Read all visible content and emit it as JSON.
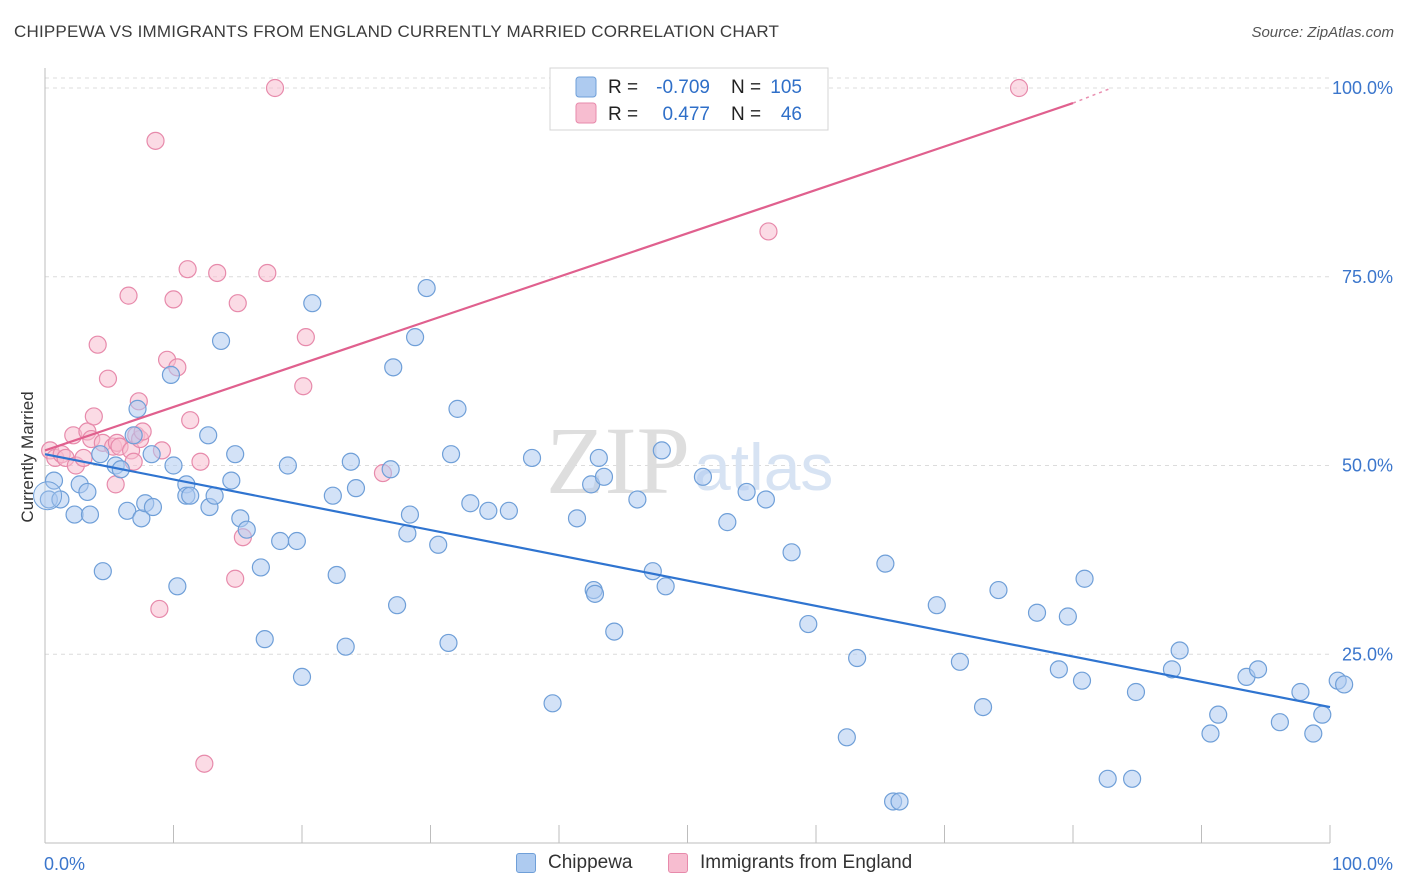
{
  "title": "CHIPPEWA VS IMMIGRANTS FROM ENGLAND CURRENTLY MARRIED CORRELATION CHART",
  "source": "Source: ZipAtlas.com",
  "watermark": {
    "zip": "ZIP",
    "atlas": "atlas"
  },
  "legend_top": [
    {
      "r_label": "R =",
      "r_value": "-0.709",
      "n_label": "N =",
      "n_value": "105"
    },
    {
      "r_label": "R =",
      "r_value": "0.477",
      "n_label": "N =",
      "n_value": "46"
    }
  ],
  "legend_bottom": [
    "Chippewa",
    "Immigrants from England"
  ],
  "chart_data": {
    "type": "scatter",
    "title": "CHIPPEWA VS IMMIGRANTS FROM ENGLAND CURRENTLY MARRIED CORRELATION CHART",
    "xlabel": "",
    "ylabel": "Currently Married",
    "xlim": [
      0,
      100
    ],
    "ylim": [
      0,
      100
    ],
    "x_tick_labels": [
      "0.0%",
      "100.0%"
    ],
    "y_tick_labels": [
      "25.0%",
      "50.0%",
      "75.0%",
      "100.0%"
    ],
    "y_ticks": [
      25,
      50,
      75,
      100
    ],
    "grid": true,
    "colors": {
      "blue_fill": "#aecbf0",
      "blue_stroke": "#6f9fd8",
      "blue_line": "#2f74d0",
      "pink_fill": "#f7bdd0",
      "pink_stroke": "#e78aab",
      "pink_line": "#e0608e",
      "tick_label": "#3b76cc",
      "legend_value": "#2f6fc8"
    },
    "series": [
      {
        "name": "Chippewa",
        "color": "blue",
        "trend": {
          "x": [
            0,
            100
          ],
          "y": [
            51.5,
            18
          ]
        },
        "points": [
          [
            0.3,
            45.5
          ],
          [
            0.7,
            48
          ],
          [
            1.2,
            45.5
          ],
          [
            2.3,
            43.5
          ],
          [
            2.7,
            47.5
          ],
          [
            3.3,
            46.5
          ],
          [
            3.5,
            43.5
          ],
          [
            4.3,
            51.5
          ],
          [
            4.5,
            36
          ],
          [
            5.5,
            50
          ],
          [
            5.9,
            49.5
          ],
          [
            6.4,
            44
          ],
          [
            6.9,
            54
          ],
          [
            7.2,
            57.5
          ],
          [
            7.5,
            43
          ],
          [
            7.8,
            45
          ],
          [
            8.3,
            51.5
          ],
          [
            8.4,
            44.5
          ],
          [
            9.8,
            62
          ],
          [
            10,
            50
          ],
          [
            10.3,
            34
          ],
          [
            11,
            47.5
          ],
          [
            11,
            46
          ],
          [
            11.3,
            46
          ],
          [
            12.7,
            54
          ],
          [
            12.8,
            44.5
          ],
          [
            13.2,
            46
          ],
          [
            13.7,
            66.5
          ],
          [
            14.5,
            48
          ],
          [
            14.8,
            51.5
          ],
          [
            15.2,
            43
          ],
          [
            15.7,
            41.5
          ],
          [
            16.8,
            36.5
          ],
          [
            17.1,
            27
          ],
          [
            18.3,
            40
          ],
          [
            18.9,
            50
          ],
          [
            19.6,
            40
          ],
          [
            20,
            22
          ],
          [
            20.8,
            71.5
          ],
          [
            22.4,
            46
          ],
          [
            22.7,
            35.5
          ],
          [
            23.4,
            26
          ],
          [
            23.8,
            50.5
          ],
          [
            24.2,
            47
          ],
          [
            26.9,
            49.5
          ],
          [
            27.1,
            63
          ],
          [
            27.4,
            31.5
          ],
          [
            28.2,
            41
          ],
          [
            28.4,
            43.5
          ],
          [
            28.8,
            67
          ],
          [
            29.7,
            73.5
          ],
          [
            30.6,
            39.5
          ],
          [
            31.4,
            26.5
          ],
          [
            31.6,
            51.5
          ],
          [
            32.1,
            57.5
          ],
          [
            33.1,
            45
          ],
          [
            34.5,
            44
          ],
          [
            36.1,
            44
          ],
          [
            37.9,
            51
          ],
          [
            39.5,
            18.5
          ],
          [
            41.4,
            43
          ],
          [
            42.5,
            47.5
          ],
          [
            42.7,
            33.5
          ],
          [
            42.8,
            33
          ],
          [
            43.1,
            51
          ],
          [
            43.5,
            48.5
          ],
          [
            44.3,
            28
          ],
          [
            46.1,
            45.5
          ],
          [
            47.3,
            36
          ],
          [
            48,
            52
          ],
          [
            48.3,
            34
          ],
          [
            51.2,
            48.5
          ],
          [
            53.1,
            42.5
          ],
          [
            54.6,
            46.5
          ],
          [
            56.1,
            45.5
          ],
          [
            58.1,
            38.5
          ],
          [
            59.4,
            29
          ],
          [
            62.4,
            14
          ],
          [
            63.2,
            24.5
          ],
          [
            65.4,
            37
          ],
          [
            66,
            5.5
          ],
          [
            66.5,
            5.5
          ],
          [
            69.4,
            31.5
          ],
          [
            71.2,
            24
          ],
          [
            73,
            18
          ],
          [
            74.2,
            33.5
          ],
          [
            77.2,
            30.5
          ],
          [
            78.9,
            23
          ],
          [
            79.6,
            30
          ],
          [
            80.7,
            21.5
          ],
          [
            80.9,
            35
          ],
          [
            82.7,
            8.5
          ],
          [
            84.6,
            8.5
          ],
          [
            84.9,
            20
          ],
          [
            87.7,
            23
          ],
          [
            88.3,
            25.5
          ],
          [
            90.7,
            14.5
          ],
          [
            91.3,
            17
          ],
          [
            93.5,
            22
          ],
          [
            94.4,
            23
          ],
          [
            96.1,
            16
          ],
          [
            97.7,
            20
          ],
          [
            98.7,
            14.5
          ],
          [
            99.4,
            17
          ],
          [
            100.6,
            21.5
          ],
          [
            101.1,
            21
          ]
        ]
      },
      {
        "name": "Immigrants from England",
        "color": "pink",
        "trend": {
          "x": [
            0,
            80
          ],
          "y": [
            52,
            98
          ],
          "dash_to": [
            83,
            100
          ]
        },
        "points": [
          [
            0.4,
            52
          ],
          [
            0.8,
            51
          ],
          [
            1.3,
            51.5
          ],
          [
            1.6,
            51
          ],
          [
            2.2,
            54
          ],
          [
            2.4,
            50
          ],
          [
            3,
            51
          ],
          [
            3.3,
            54.5
          ],
          [
            3.6,
            53.5
          ],
          [
            3.8,
            56.5
          ],
          [
            4.1,
            66
          ],
          [
            4.5,
            53
          ],
          [
            4.9,
            61.5
          ],
          [
            5.3,
            52.5
          ],
          [
            5.5,
            47.5
          ],
          [
            5.6,
            53
          ],
          [
            5.8,
            52.5
          ],
          [
            6.5,
            72.5
          ],
          [
            6.7,
            52
          ],
          [
            6.9,
            50.5
          ],
          [
            7.1,
            54
          ],
          [
            7.3,
            58.5
          ],
          [
            7.4,
            53.5
          ],
          [
            7.6,
            54.5
          ],
          [
            8.6,
            93
          ],
          [
            8.9,
            31
          ],
          [
            9.1,
            52
          ],
          [
            9.5,
            64
          ],
          [
            10,
            72
          ],
          [
            10.3,
            63
          ],
          [
            11.1,
            76
          ],
          [
            11.3,
            56
          ],
          [
            12.1,
            50.5
          ],
          [
            12.4,
            10.5
          ],
          [
            13.4,
            75.5
          ],
          [
            14.8,
            35
          ],
          [
            15,
            71.5
          ],
          [
            15.4,
            40.5
          ],
          [
            17.3,
            75.5
          ],
          [
            17.9,
            100
          ],
          [
            20.1,
            60.5
          ],
          [
            20.3,
            67
          ],
          [
            26.3,
            49
          ],
          [
            56.3,
            81
          ],
          [
            75.8,
            100
          ]
        ]
      }
    ]
  }
}
